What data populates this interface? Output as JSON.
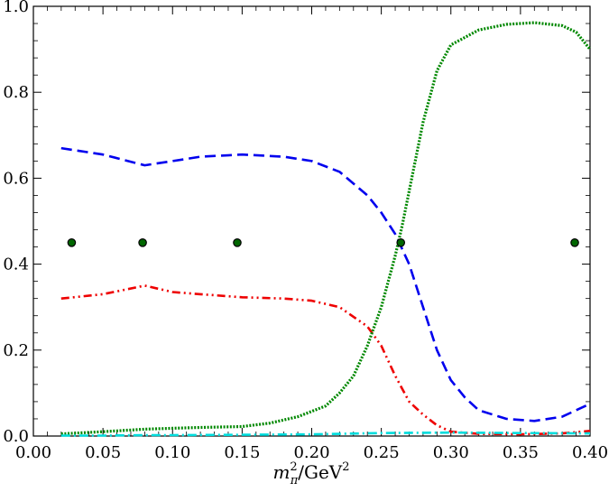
{
  "chart_data": {
    "type": "line",
    "xlabel_parts": {
      "m": "m",
      "sup": "2",
      "sub": "π",
      "slash": "/GeV",
      "unit_sup": "2"
    },
    "ylabel": "",
    "xlim": [
      0.0,
      0.4
    ],
    "ylim": [
      0.0,
      1.0
    ],
    "x_ticks": [
      "0.00",
      "0.05",
      "0.10",
      "0.15",
      "0.20",
      "0.25",
      "0.30",
      "0.35",
      "0.40"
    ],
    "y_ticks": [
      "0.0",
      "0.2",
      "0.4",
      "0.6",
      "0.8",
      "1.0"
    ],
    "grid": false,
    "legend": "none",
    "series": [
      {
        "style": "dashed",
        "color": "#0000ee",
        "x": [
          0.02,
          0.05,
          0.08,
          0.1,
          0.12,
          0.15,
          0.18,
          0.2,
          0.22,
          0.24,
          0.25,
          0.26,
          0.27,
          0.28,
          0.29,
          0.3,
          0.31,
          0.32,
          0.34,
          0.36,
          0.38,
          0.4
        ],
        "y": [
          0.67,
          0.655,
          0.63,
          0.64,
          0.65,
          0.655,
          0.65,
          0.64,
          0.615,
          0.56,
          0.52,
          0.47,
          0.4,
          0.3,
          0.2,
          0.13,
          0.09,
          0.06,
          0.04,
          0.035,
          0.045,
          0.075
        ]
      },
      {
        "style": "dash-dot-dot",
        "color": "#ee0000",
        "x": [
          0.02,
          0.05,
          0.08,
          0.1,
          0.12,
          0.15,
          0.18,
          0.2,
          0.22,
          0.24,
          0.25,
          0.26,
          0.27,
          0.28,
          0.29,
          0.3,
          0.32,
          0.35,
          0.38,
          0.4
        ],
        "y": [
          0.32,
          0.33,
          0.35,
          0.335,
          0.33,
          0.323,
          0.32,
          0.315,
          0.3,
          0.255,
          0.21,
          0.14,
          0.08,
          0.05,
          0.025,
          0.01,
          0.005,
          0.004,
          0.006,
          0.012
        ]
      },
      {
        "style": "dotted",
        "color": "#008800",
        "x": [
          0.02,
          0.05,
          0.08,
          0.1,
          0.12,
          0.15,
          0.17,
          0.19,
          0.21,
          0.22,
          0.23,
          0.24,
          0.25,
          0.26,
          0.265,
          0.27,
          0.28,
          0.29,
          0.3,
          0.32,
          0.34,
          0.36,
          0.38,
          0.39,
          0.4
        ],
        "y": [
          0.005,
          0.01,
          0.016,
          0.018,
          0.02,
          0.022,
          0.03,
          0.045,
          0.07,
          0.1,
          0.14,
          0.21,
          0.3,
          0.42,
          0.49,
          0.57,
          0.73,
          0.85,
          0.91,
          0.945,
          0.958,
          0.962,
          0.955,
          0.94,
          0.9
        ]
      },
      {
        "style": "dash-dot",
        "color": "#00dddd",
        "x": [
          0.02,
          0.05,
          0.08,
          0.1,
          0.15,
          0.2,
          0.25,
          0.3,
          0.35,
          0.4
        ],
        "y": [
          0.001,
          0.001,
          0.002,
          0.002,
          0.003,
          0.004,
          0.007,
          0.008,
          0.007,
          0.006
        ]
      },
      {
        "style": "markers",
        "color": "#006600",
        "x": [
          0.0275,
          0.0785,
          0.1465,
          0.264,
          0.389
        ],
        "y": [
          0.45,
          0.45,
          0.45,
          0.45,
          0.45
        ]
      }
    ]
  }
}
